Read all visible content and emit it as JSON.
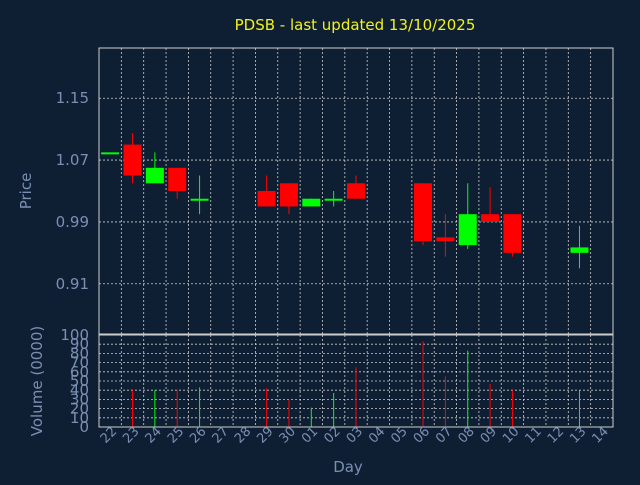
{
  "chart_data": {
    "type": "candlestick",
    "title": "PDSB - last updated 13/10/2025",
    "xlabel": "Day",
    "price_panel": {
      "ylabel": "Price",
      "ylim": [
        0.845,
        1.215
      ],
      "yticks": [
        "1.15",
        "1.07",
        "0.99",
        "0.91"
      ],
      "ytick_values": [
        1.15,
        1.07,
        0.99,
        0.91
      ],
      "grid": true
    },
    "volume_panel": {
      "ylabel": "Volume (0000)",
      "ylim": [
        0,
        100
      ],
      "yticks": [
        "100",
        "90",
        "80",
        "70",
        "60",
        "50",
        "40",
        "30",
        "20",
        "10",
        "0"
      ],
      "ytick_values": [
        100,
        90,
        80,
        70,
        60,
        50,
        40,
        30,
        20,
        10,
        0
      ],
      "grid": true
    },
    "x_labels": [
      "22",
      "23",
      "24",
      "25",
      "26",
      "27",
      "28",
      "29",
      "30",
      "01",
      "02",
      "03",
      "04",
      "05",
      "06",
      "07",
      "08",
      "09",
      "10",
      "11",
      "12",
      "13",
      "14"
    ],
    "up_color": "#00ff00",
    "down_color": "#ff0000",
    "candles": [
      {
        "day": "22",
        "open": 1.08,
        "close": 1.08,
        "high": 1.08,
        "low": 1.08,
        "volume": 0
      },
      {
        "day": "23",
        "open": 1.09,
        "close": 1.05,
        "high": 1.105,
        "low": 1.04,
        "volume": 40
      },
      {
        "day": "24",
        "open": 1.04,
        "close": 1.06,
        "high": 1.08,
        "low": 1.04,
        "volume": 40
      },
      {
        "day": "25",
        "open": 1.06,
        "close": 1.03,
        "high": 1.06,
        "low": 1.02,
        "volume": 40
      },
      {
        "day": "26",
        "open": 1.02,
        "close": 1.02,
        "high": 1.05,
        "low": 1.0,
        "volume": 43
      },
      {
        "day": "29",
        "open": 1.03,
        "close": 1.01,
        "high": 1.05,
        "low": 1.01,
        "volume": 42
      },
      {
        "day": "30",
        "open": 1.04,
        "close": 1.01,
        "high": 1.04,
        "low": 1.0,
        "volume": 30
      },
      {
        "day": "01",
        "open": 1.01,
        "close": 1.02,
        "high": 1.02,
        "low": 1.01,
        "volume": 21
      },
      {
        "day": "02",
        "open": 1.02,
        "close": 1.02,
        "high": 1.03,
        "low": 1.01,
        "volume": 37
      },
      {
        "day": "03",
        "open": 1.04,
        "close": 1.02,
        "high": 1.05,
        "low": 1.02,
        "volume": 65
      },
      {
        "day": "06",
        "open": 1.04,
        "close": 0.965,
        "high": 1.04,
        "low": 0.96,
        "volume": 93
      },
      {
        "day": "07",
        "open": 0.97,
        "close": 0.965,
        "high": 1.0,
        "low": 0.945,
        "volume": 55
      },
      {
        "day": "08",
        "open": 0.96,
        "close": 1.0,
        "high": 1.04,
        "low": 0.955,
        "volume": 83
      },
      {
        "day": "09",
        "open": 1.0,
        "close": 0.99,
        "high": 1.035,
        "low": 0.99,
        "volume": 47
      },
      {
        "day": "10",
        "open": 1.0,
        "close": 0.95,
        "high": 1.0,
        "low": 0.945,
        "volume": 40
      },
      {
        "day": "13",
        "open": 0.95,
        "close": 0.957,
        "high": 0.985,
        "low": 0.93,
        "volume": 40
      }
    ]
  }
}
